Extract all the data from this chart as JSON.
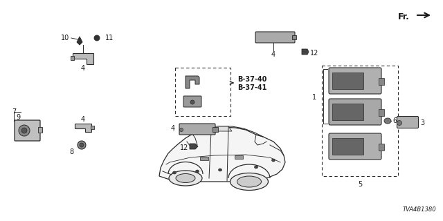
{
  "background_color": "#ffffff",
  "line_color": "#2a2a2a",
  "text_color": "#1a1a1a",
  "diagram_id": "TVA4B1380",
  "fr_label": "Fr.",
  "ref_labels": [
    "B-37-40",
    "B-37-41"
  ],
  "figsize": [
    6.4,
    3.2
  ],
  "dpi": 100
}
